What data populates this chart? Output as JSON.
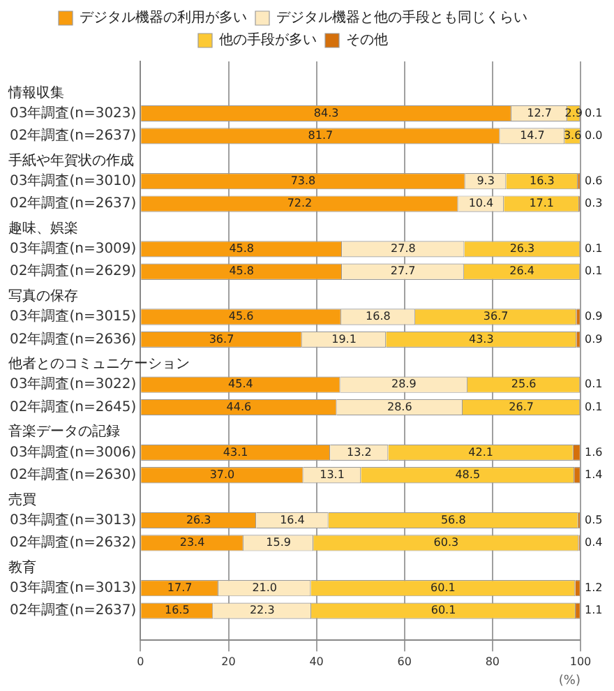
{
  "chart_data": {
    "type": "bar",
    "orientation": "horizontal",
    "stacked": true,
    "categories": [
      "03年調査(n=3023)",
      "02年調査(n=2637)",
      "03年調査(n=3010)",
      "02年調査(n=2637)",
      "03年調査(n=3009)",
      "02年調査(n=2629)",
      "03年調査(n=3015)",
      "02年調査(n=2636)",
      "03年調査(n=3022)",
      "02年調査(n=2645)",
      "03年調査(n=3006)",
      "02年調査(n=2630)",
      "03年調査(n=3013)",
      "02年調査(n=2632)",
      "03年調査(n=3013)",
      "02年調査(n=2637)"
    ],
    "series": [
      {
        "name": "デジタル機器の利用が多い",
        "color": "#f89c0e",
        "values": [
          84.3,
          81.7,
          73.8,
          72.2,
          45.8,
          45.8,
          45.6,
          36.7,
          45.4,
          44.6,
          43.1,
          37.0,
          26.3,
          23.4,
          17.7,
          16.5
        ],
        "value_labels": [
          "84.3",
          "81.7",
          "73.8",
          "72.2",
          "45.8",
          "45.8",
          "45.6",
          "36.7",
          "45.4",
          "44.6",
          "43.1",
          "37.0",
          "26.3",
          "23.4",
          "17.7",
          "16.5"
        ]
      },
      {
        "name": "デジタル機器と他の手段とも同じくらい",
        "color": "#fde9bf",
        "values": [
          12.7,
          14.7,
          9.3,
          10.4,
          27.8,
          27.7,
          16.8,
          19.1,
          28.9,
          28.6,
          13.2,
          13.1,
          16.4,
          15.9,
          21.0,
          22.3
        ],
        "value_labels": [
          "12.7",
          "14.7",
          "9.3",
          "10.4",
          "27.8",
          "27.7",
          "16.8",
          "19.1",
          "28.9",
          "28.6",
          "13.2",
          "13.1",
          "16.4",
          "15.9",
          "21.0",
          "22.3"
        ]
      },
      {
        "name": "他の手段が多い",
        "color": "#fcc935",
        "values": [
          2.9,
          3.6,
          16.3,
          17.1,
          26.3,
          26.4,
          36.7,
          43.3,
          25.6,
          26.7,
          42.1,
          48.5,
          56.8,
          60.3,
          60.1,
          60.1
        ],
        "value_labels": [
          "2.9",
          "3.6",
          "16.3",
          "17.1",
          "26.3",
          "26.4",
          "36.7",
          "43.3",
          "25.6",
          "26.7",
          "42.1",
          "48.5",
          "56.8",
          "60.3",
          "60.1",
          "60.1"
        ]
      },
      {
        "name": "その他",
        "color": "#d4700c",
        "values": [
          0.1,
          0.0,
          0.6,
          0.3,
          0.1,
          0.1,
          0.9,
          0.9,
          0.1,
          0.1,
          1.6,
          1.4,
          0.5,
          0.4,
          1.2,
          1.1
        ],
        "value_labels": [
          "0.1",
          "0.0",
          "0.6",
          "0.3",
          "0.1",
          "0.1",
          "0.9",
          "0.9",
          "0.1",
          "0.1",
          "1.6",
          "1.4",
          "0.5",
          "0.4",
          "1.2",
          "1.1"
        ]
      }
    ],
    "annotations": [
      "情報収集",
      "手紙や年賀状の作成",
      "趣味、娯楽",
      "写真の保存",
      "他者とのコミュニケーション",
      "音楽データの記録",
      "売買",
      "教育"
    ],
    "xlabel": "(%)",
    "xlim": [
      0,
      100
    ],
    "xticks": [
      0,
      20,
      40,
      60,
      80,
      100
    ],
    "grid": "x",
    "legend": "top"
  }
}
